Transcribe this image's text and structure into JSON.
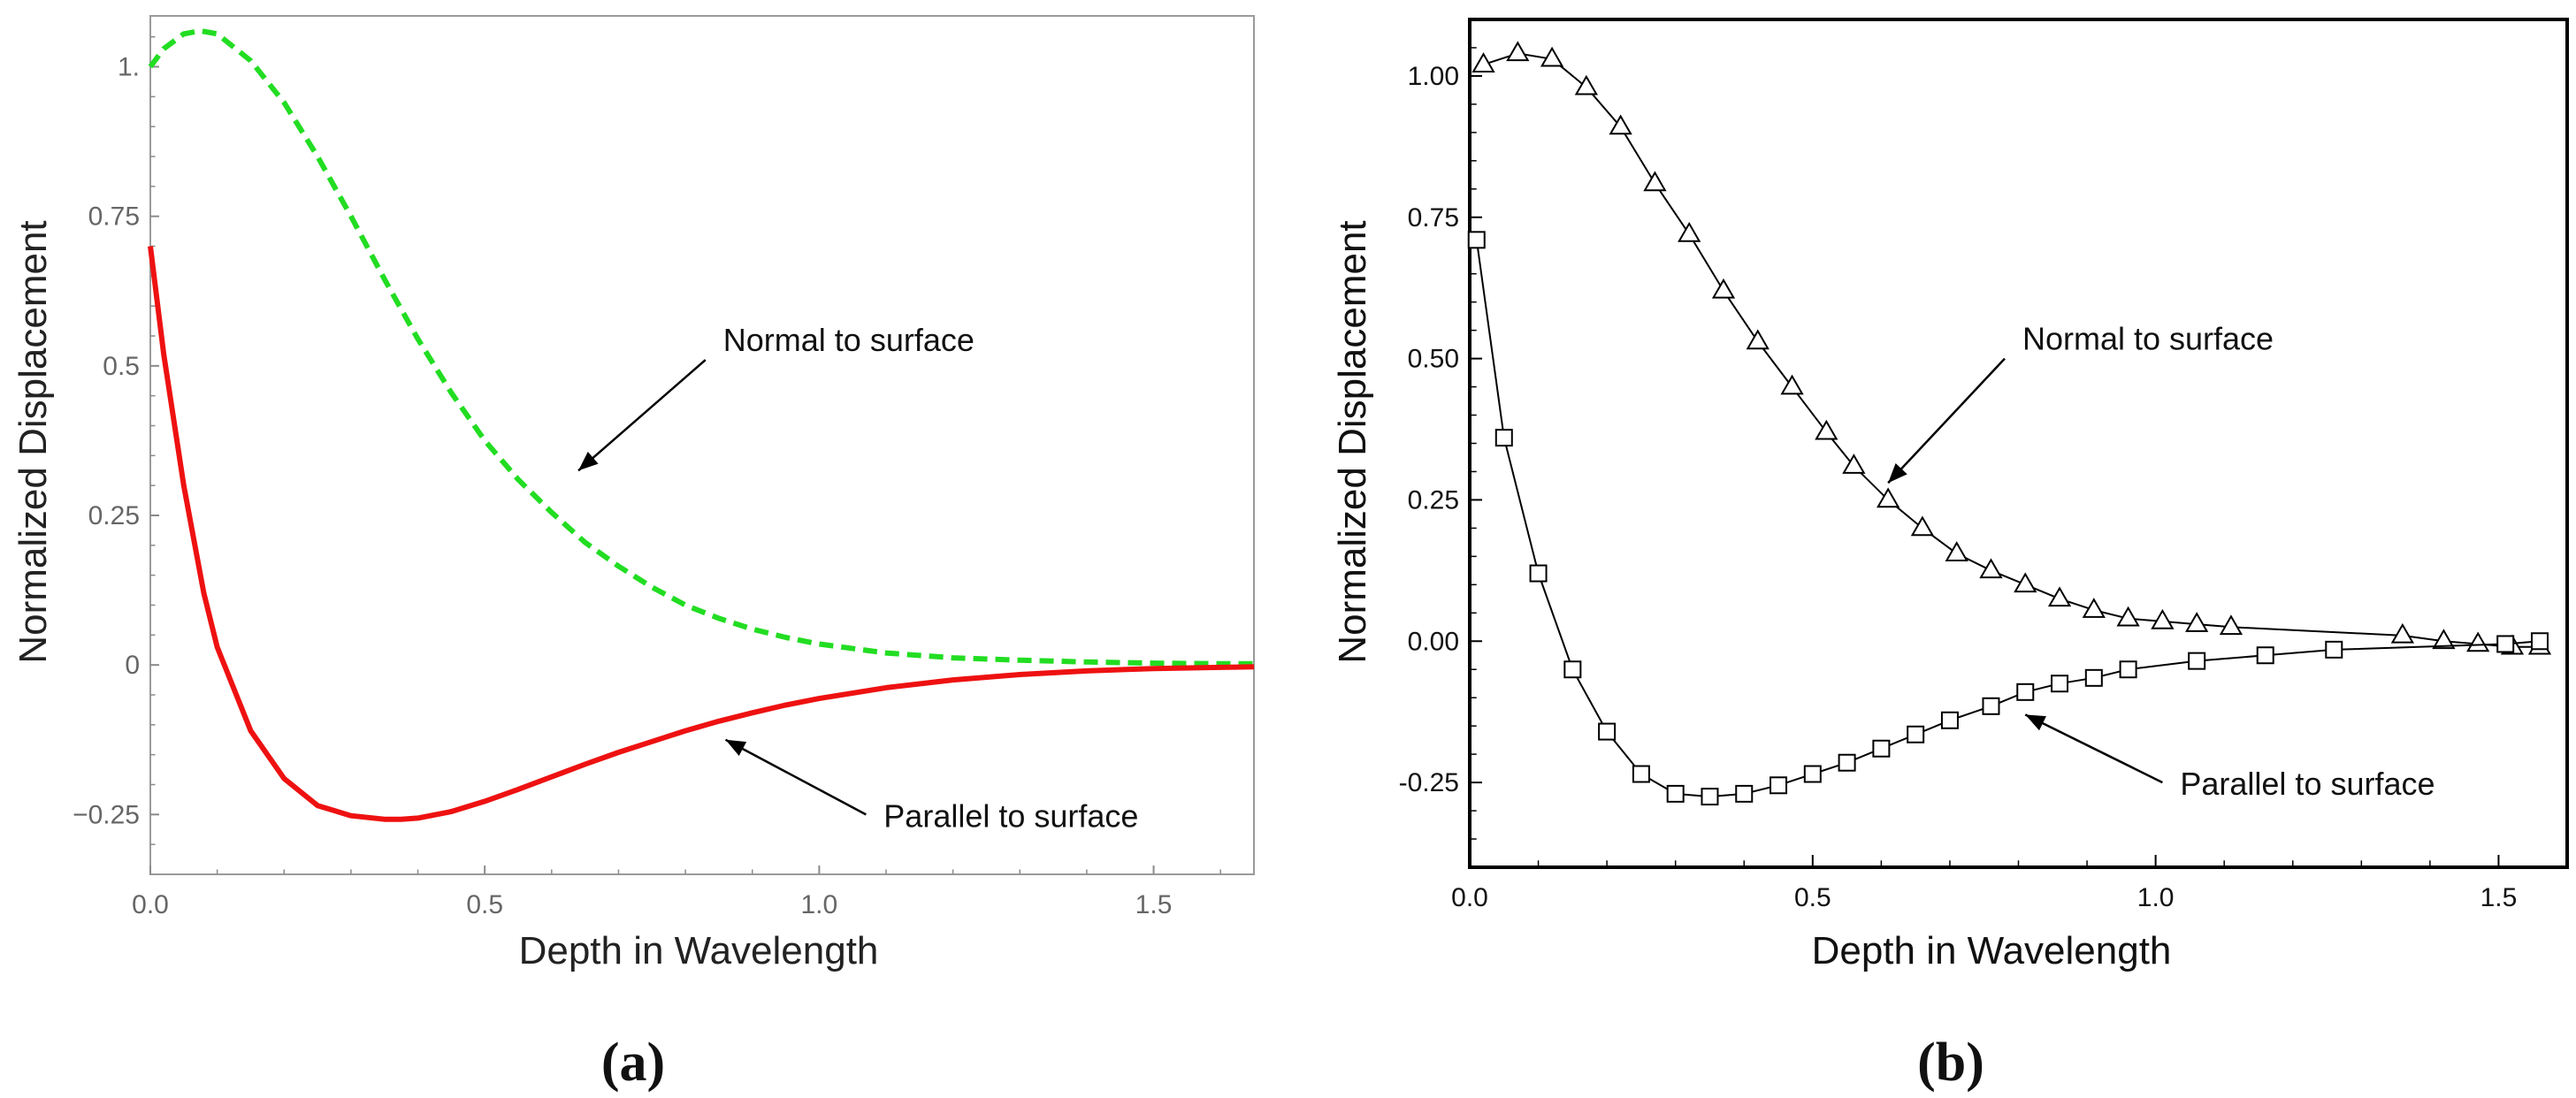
{
  "figure": {
    "panel_a_caption_label": "a",
    "panel_b_caption_label": "b"
  },
  "chart_data": [
    {
      "type": "line",
      "panel": "a",
      "title": "",
      "xlabel": "Depth in Wavelength",
      "ylabel": "Normalized Displacement",
      "xlim": [
        0,
        1.65
      ],
      "ylim": [
        -0.35,
        1.085
      ],
      "grid": false,
      "xticks": [
        0,
        0.5,
        1.0,
        1.5
      ],
      "xtick_labels": [
        "0.0",
        "0.5",
        "1.0",
        "1.5"
      ],
      "yticks": [
        -0.25,
        0,
        0.25,
        0.5,
        0.75,
        1.0
      ],
      "ytick_labels": [
        "−0.25",
        "0",
        "0.25",
        "0.5",
        "0.75",
        "1."
      ],
      "series": [
        {
          "name": "Normal to surface",
          "color": "#22dd22",
          "style": "dashed",
          "x": [
            0.0,
            0.02,
            0.05,
            0.075,
            0.1,
            0.15,
            0.2,
            0.25,
            0.3,
            0.35,
            0.4,
            0.45,
            0.5,
            0.55,
            0.6,
            0.65,
            0.7,
            0.75,
            0.8,
            0.85,
            0.9,
            0.95,
            1.0,
            1.1,
            1.2,
            1.3,
            1.4,
            1.5,
            1.6,
            1.65
          ],
          "y": [
            1.0,
            1.03,
            1.055,
            1.06,
            1.055,
            1.01,
            0.94,
            0.85,
            0.75,
            0.645,
            0.545,
            0.455,
            0.375,
            0.31,
            0.255,
            0.205,
            0.165,
            0.13,
            0.1,
            0.078,
            0.06,
            0.046,
            0.035,
            0.02,
            0.012,
            0.008,
            0.005,
            0.003,
            0.002,
            0.002
          ]
        },
        {
          "name": "Parallel to surface",
          "color": "#ee1111",
          "style": "solid",
          "x": [
            0.0,
            0.02,
            0.05,
            0.08,
            0.1,
            0.15,
            0.2,
            0.25,
            0.3,
            0.35,
            0.375,
            0.4,
            0.45,
            0.5,
            0.55,
            0.6,
            0.65,
            0.7,
            0.75,
            0.8,
            0.85,
            0.9,
            0.95,
            1.0,
            1.1,
            1.2,
            1.3,
            1.4,
            1.5,
            1.6,
            1.65
          ],
          "y": [
            0.7,
            0.52,
            0.3,
            0.12,
            0.03,
            -0.11,
            -0.19,
            -0.235,
            -0.252,
            -0.258,
            -0.258,
            -0.256,
            -0.245,
            -0.228,
            -0.208,
            -0.187,
            -0.166,
            -0.146,
            -0.128,
            -0.11,
            -0.094,
            -0.08,
            -0.067,
            -0.056,
            -0.038,
            -0.025,
            -0.016,
            -0.01,
            -0.006,
            -0.004,
            -0.003
          ]
        }
      ],
      "annotations": [
        {
          "text": "Normal to surface",
          "from": [
            0.83,
            0.51
          ],
          "to": [
            0.64,
            0.325
          ]
        },
        {
          "text": "Parallel to surface",
          "from": [
            1.07,
            -0.25
          ],
          "to": [
            0.86,
            -0.125
          ]
        }
      ]
    },
    {
      "type": "line",
      "panel": "b",
      "title": "",
      "xlabel": "Depth in Wavelength",
      "ylabel": "Normalized Displacement",
      "xlim": [
        0,
        1.6
      ],
      "ylim": [
        -0.4,
        1.1
      ],
      "grid": false,
      "xticks": [
        0,
        0.5,
        1.0,
        1.5
      ],
      "xtick_labels": [
        "0.0",
        "0.5",
        "1.0",
        "1.5"
      ],
      "yticks": [
        -0.25,
        0,
        0.25,
        0.5,
        0.75,
        1.0
      ],
      "ytick_labels": [
        "-0.25",
        "0.00",
        "0.25",
        "0.50",
        "0.75",
        "1.00"
      ],
      "series": [
        {
          "name": "Normal to surface",
          "color": "#000000",
          "marker": "triangle",
          "x": [
            0.02,
            0.07,
            0.12,
            0.17,
            0.22,
            0.27,
            0.32,
            0.37,
            0.42,
            0.47,
            0.52,
            0.56,
            0.61,
            0.66,
            0.71,
            0.76,
            0.81,
            0.86,
            0.91,
            0.96,
            1.01,
            1.06,
            1.11,
            1.36,
            1.42,
            1.47,
            1.52,
            1.56
          ],
          "y": [
            1.02,
            1.04,
            1.03,
            0.98,
            0.91,
            0.81,
            0.72,
            0.62,
            0.53,
            0.45,
            0.37,
            0.31,
            0.25,
            0.2,
            0.155,
            0.125,
            0.1,
            0.075,
            0.055,
            0.04,
            0.035,
            0.03,
            0.025,
            0.01,
            0.0,
            -0.005,
            -0.01,
            -0.01
          ]
        },
        {
          "name": "Parallel to surface",
          "color": "#000000",
          "marker": "square",
          "x": [
            0.01,
            0.05,
            0.1,
            0.15,
            0.2,
            0.25,
            0.3,
            0.35,
            0.4,
            0.45,
            0.5,
            0.55,
            0.6,
            0.65,
            0.7,
            0.76,
            0.81,
            0.86,
            0.91,
            0.96,
            1.06,
            1.16,
            1.26,
            1.51,
            1.56
          ],
          "y": [
            0.71,
            0.36,
            0.12,
            -0.05,
            -0.16,
            -0.235,
            -0.27,
            -0.275,
            -0.27,
            -0.255,
            -0.235,
            -0.215,
            -0.19,
            -0.165,
            -0.14,
            -0.115,
            -0.09,
            -0.075,
            -0.065,
            -0.05,
            -0.035,
            -0.025,
            -0.015,
            -0.005,
            0.0
          ]
        }
      ],
      "annotations": [
        {
          "text": "Normal to surface",
          "from": [
            0.78,
            0.5
          ],
          "to": [
            0.61,
            0.28
          ]
        },
        {
          "text": "Parallel to surface",
          "from": [
            1.01,
            -0.25
          ],
          "to": [
            0.81,
            -0.13
          ]
        }
      ]
    }
  ]
}
